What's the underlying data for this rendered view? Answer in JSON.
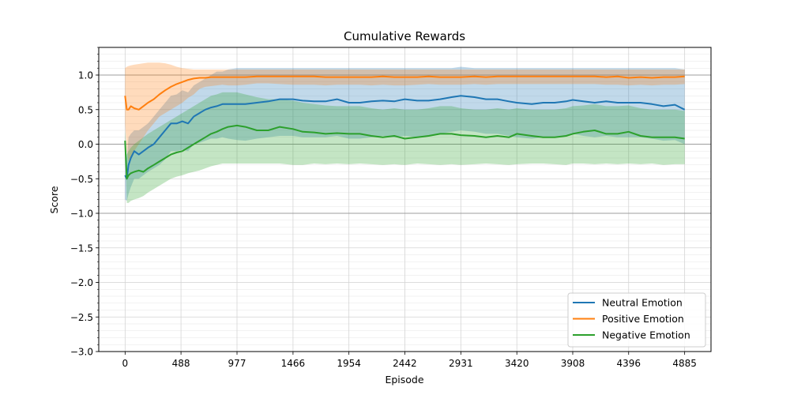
{
  "chart_data": {
    "type": "line",
    "title": "Cumulative Rewards",
    "xlabel": "Episode",
    "ylabel": "Score",
    "xlim": [
      -230,
      5115
    ],
    "ylim": [
      -3.0,
      1.4
    ],
    "xticks": [
      0,
      488,
      977,
      1466,
      1954,
      2442,
      2931,
      3420,
      3908,
      4396,
      4885
    ],
    "yticks": [
      -3.0,
      -2.5,
      -2.0,
      -1.5,
      -1.0,
      -0.5,
      0.0,
      0.5,
      1.0
    ],
    "ytick_labels": [
      "−3.0",
      "−2.5",
      "−2.0",
      "−1.5",
      "−1.0",
      "−0.5",
      "0.0",
      "0.5",
      "1.0"
    ],
    "reference_lines": [
      -1.0,
      0.0,
      1.0
    ],
    "grid": true,
    "legend_position": "lower-right",
    "x": [
      0,
      15,
      30,
      50,
      80,
      120,
      160,
      200,
      250,
      300,
      350,
      400,
      450,
      500,
      550,
      600,
      650,
      700,
      750,
      800,
      850,
      900,
      977,
      1050,
      1150,
      1250,
      1350,
      1466,
      1550,
      1650,
      1750,
      1850,
      1954,
      2050,
      2150,
      2250,
      2350,
      2442,
      2550,
      2650,
      2750,
      2850,
      2931,
      3050,
      3150,
      3250,
      3350,
      3420,
      3550,
      3650,
      3750,
      3850,
      3908,
      4000,
      4100,
      4200,
      4300,
      4396,
      4500,
      4600,
      4700,
      4800,
      4885
    ],
    "series": [
      {
        "name": "Neutral Emotion",
        "color": "#1f77b4",
        "values": [
          -0.45,
          -0.5,
          -0.3,
          -0.2,
          -0.1,
          -0.15,
          -0.1,
          -0.05,
          0.0,
          0.1,
          0.2,
          0.3,
          0.3,
          0.33,
          0.3,
          0.4,
          0.45,
          0.5,
          0.53,
          0.55,
          0.58,
          0.58,
          0.58,
          0.58,
          0.6,
          0.62,
          0.65,
          0.65,
          0.63,
          0.62,
          0.62,
          0.65,
          0.6,
          0.6,
          0.62,
          0.63,
          0.62,
          0.65,
          0.63,
          0.63,
          0.65,
          0.68,
          0.7,
          0.68,
          0.65,
          0.65,
          0.62,
          0.6,
          0.58,
          0.6,
          0.6,
          0.62,
          0.64,
          0.62,
          0.6,
          0.62,
          0.6,
          0.6,
          0.6,
          0.58,
          0.55,
          0.57,
          0.5
        ],
        "upper": [
          -0.1,
          -0.2,
          0.1,
          0.15,
          0.2,
          0.2,
          0.25,
          0.3,
          0.4,
          0.5,
          0.6,
          0.7,
          0.72,
          0.78,
          0.75,
          0.85,
          0.9,
          0.95,
          1.0,
          1.05,
          1.05,
          1.08,
          1.1,
          1.1,
          1.1,
          1.1,
          1.1,
          1.1,
          1.1,
          1.1,
          1.1,
          1.1,
          1.1,
          1.1,
          1.1,
          1.1,
          1.1,
          1.1,
          1.1,
          1.1,
          1.1,
          1.1,
          1.12,
          1.1,
          1.1,
          1.1,
          1.1,
          1.1,
          1.1,
          1.1,
          1.1,
          1.1,
          1.1,
          1.1,
          1.1,
          1.1,
          1.1,
          1.1,
          1.1,
          1.1,
          1.1,
          1.1,
          1.08
        ],
        "lower": [
          -0.8,
          -0.82,
          -0.72,
          -0.62,
          -0.5,
          -0.5,
          -0.45,
          -0.4,
          -0.35,
          -0.3,
          -0.22,
          -0.1,
          -0.1,
          -0.08,
          -0.1,
          0.0,
          0.02,
          0.05,
          0.08,
          0.08,
          0.1,
          0.08,
          0.06,
          0.05,
          0.08,
          0.1,
          0.12,
          0.12,
          0.1,
          0.1,
          0.1,
          0.12,
          0.08,
          0.08,
          0.1,
          0.12,
          0.1,
          0.12,
          0.1,
          0.12,
          0.15,
          0.18,
          0.2,
          0.18,
          0.15,
          0.15,
          0.12,
          0.1,
          0.08,
          0.1,
          0.1,
          0.12,
          0.15,
          0.12,
          0.1,
          0.12,
          0.1,
          0.1,
          0.1,
          0.08,
          0.05,
          0.06,
          0.0
        ]
      },
      {
        "name": "Positive Emotion",
        "color": "#ff7f0e",
        "values": [
          0.7,
          0.5,
          0.5,
          0.55,
          0.52,
          0.5,
          0.55,
          0.6,
          0.65,
          0.72,
          0.78,
          0.83,
          0.87,
          0.9,
          0.93,
          0.95,
          0.96,
          0.96,
          0.97,
          0.97,
          0.97,
          0.97,
          0.97,
          0.97,
          0.98,
          0.98,
          0.98,
          0.98,
          0.98,
          0.98,
          0.97,
          0.97,
          0.97,
          0.97,
          0.97,
          0.98,
          0.97,
          0.97,
          0.97,
          0.98,
          0.97,
          0.97,
          0.97,
          0.98,
          0.97,
          0.98,
          0.98,
          0.98,
          0.98,
          0.98,
          0.98,
          0.98,
          0.98,
          0.98,
          0.98,
          0.97,
          0.98,
          0.96,
          0.97,
          0.96,
          0.97,
          0.97,
          0.98
        ],
        "upper": [
          1.1,
          1.12,
          1.13,
          1.14,
          1.15,
          1.16,
          1.17,
          1.18,
          1.18,
          1.18,
          1.17,
          1.15,
          1.12,
          1.1,
          1.09,
          1.08,
          1.08,
          1.08,
          1.08,
          1.08,
          1.08,
          1.08,
          1.08,
          1.08,
          1.08,
          1.08,
          1.08,
          1.08,
          1.08,
          1.08,
          1.08,
          1.08,
          1.08,
          1.08,
          1.08,
          1.08,
          1.08,
          1.08,
          1.08,
          1.08,
          1.08,
          1.08,
          1.08,
          1.08,
          1.08,
          1.08,
          1.08,
          1.08,
          1.08,
          1.08,
          1.08,
          1.08,
          1.08,
          1.08,
          1.08,
          1.08,
          1.08,
          1.08,
          1.08,
          1.08,
          1.08,
          1.08,
          1.08
        ],
        "lower": [
          0.3,
          -0.1,
          -0.25,
          -0.2,
          -0.1,
          0.0,
          0.1,
          0.2,
          0.3,
          0.4,
          0.45,
          0.5,
          0.55,
          0.6,
          0.67,
          0.72,
          0.8,
          0.83,
          0.84,
          0.85,
          0.86,
          0.85,
          0.85,
          0.86,
          0.88,
          0.88,
          0.87,
          0.86,
          0.86,
          0.86,
          0.85,
          0.86,
          0.86,
          0.86,
          0.85,
          0.86,
          0.85,
          0.85,
          0.86,
          0.87,
          0.86,
          0.86,
          0.86,
          0.87,
          0.86,
          0.87,
          0.87,
          0.87,
          0.87,
          0.87,
          0.87,
          0.87,
          0.87,
          0.87,
          0.87,
          0.86,
          0.86,
          0.85,
          0.86,
          0.85,
          0.86,
          0.86,
          0.87
        ]
      },
      {
        "name": "Negative Emotion",
        "color": "#2ca02c",
        "values": [
          0.05,
          -0.5,
          -0.45,
          -0.42,
          -0.4,
          -0.38,
          -0.4,
          -0.35,
          -0.3,
          -0.25,
          -0.2,
          -0.15,
          -0.12,
          -0.1,
          -0.05,
          0.0,
          0.05,
          0.1,
          0.15,
          0.18,
          0.22,
          0.25,
          0.27,
          0.25,
          0.2,
          0.2,
          0.25,
          0.22,
          0.18,
          0.17,
          0.15,
          0.16,
          0.15,
          0.15,
          0.12,
          0.1,
          0.12,
          0.08,
          0.1,
          0.12,
          0.15,
          0.15,
          0.13,
          0.12,
          0.1,
          0.12,
          0.1,
          0.15,
          0.12,
          0.1,
          0.1,
          0.12,
          0.15,
          0.18,
          0.2,
          0.15,
          0.15,
          0.18,
          0.12,
          0.1,
          0.1,
          0.1,
          0.08
        ],
        "upper": [
          0.2,
          -0.15,
          -0.1,
          -0.05,
          0.0,
          0.05,
          0.1,
          0.15,
          0.2,
          0.25,
          0.3,
          0.35,
          0.4,
          0.45,
          0.5,
          0.55,
          0.6,
          0.65,
          0.7,
          0.72,
          0.75,
          0.75,
          0.75,
          0.72,
          0.68,
          0.65,
          0.65,
          0.63,
          0.6,
          0.58,
          0.56,
          0.55,
          0.55,
          0.55,
          0.52,
          0.5,
          0.52,
          0.5,
          0.5,
          0.52,
          0.55,
          0.55,
          0.52,
          0.5,
          0.5,
          0.52,
          0.5,
          0.52,
          0.5,
          0.5,
          0.5,
          0.52,
          0.55,
          0.56,
          0.58,
          0.55,
          0.55,
          0.56,
          0.52,
          0.5,
          0.5,
          0.5,
          0.48
        ],
        "lower": [
          -0.1,
          -0.85,
          -0.85,
          -0.82,
          -0.8,
          -0.78,
          -0.75,
          -0.7,
          -0.65,
          -0.6,
          -0.55,
          -0.5,
          -0.47,
          -0.45,
          -0.42,
          -0.4,
          -0.38,
          -0.35,
          -0.32,
          -0.3,
          -0.28,
          -0.28,
          -0.28,
          -0.28,
          -0.28,
          -0.28,
          -0.28,
          -0.3,
          -0.3,
          -0.28,
          -0.29,
          -0.28,
          -0.29,
          -0.28,
          -0.29,
          -0.3,
          -0.29,
          -0.3,
          -0.28,
          -0.29,
          -0.3,
          -0.29,
          -0.3,
          -0.29,
          -0.28,
          -0.29,
          -0.3,
          -0.29,
          -0.28,
          -0.28,
          -0.29,
          -0.3,
          -0.28,
          -0.28,
          -0.29,
          -0.28,
          -0.29,
          -0.28,
          -0.29,
          -0.28,
          -0.3,
          -0.29,
          -0.29
        ]
      }
    ]
  }
}
